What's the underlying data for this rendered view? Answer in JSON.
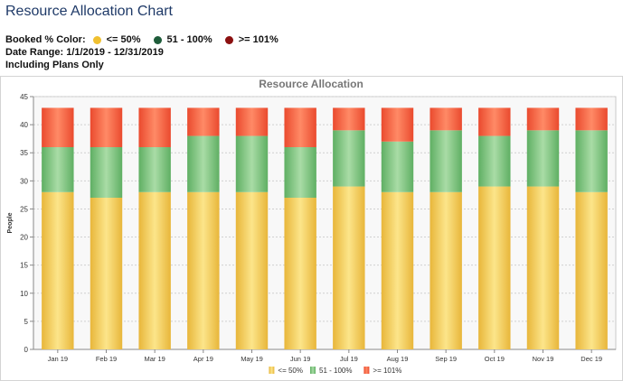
{
  "page": {
    "title": "Resource Allocation Chart",
    "booked_label": "Booked % Color:",
    "legend_items": [
      {
        "label": "<= 50%",
        "color": "#f0c030"
      },
      {
        "label": "51 - 100%",
        "color": "#1e5c3a"
      },
      {
        "label": ">= 101%",
        "color": "#8b1010"
      }
    ],
    "date_range": "Date Range: 1/1/2019 - 12/31/2019",
    "plans_note": "Including Plans Only"
  },
  "chart_data": {
    "type": "bar",
    "stacked": true,
    "title": "Resource Allocation",
    "ylabel": "People",
    "xlabel": "",
    "ylim": [
      0,
      45
    ],
    "yticks": [
      0,
      5,
      10,
      15,
      20,
      25,
      30,
      35,
      40,
      45
    ],
    "grid": true,
    "legend_position": "bottom",
    "categories": [
      "Jan 19",
      "Feb 19",
      "Mar 19",
      "Apr 19",
      "May 19",
      "Jun 19",
      "Jul 19",
      "Aug 19",
      "Sep 19",
      "Oct 19",
      "Nov 19",
      "Dec 19"
    ],
    "series": [
      {
        "name": "<= 50%",
        "color": "#f2c94c",
        "values": [
          28,
          27,
          28,
          28,
          28,
          27,
          29,
          28,
          28,
          29,
          29,
          28
        ]
      },
      {
        "name": "51 - 100%",
        "color": "#7cc47f",
        "values": [
          8,
          9,
          8,
          10,
          10,
          9,
          10,
          9,
          11,
          9,
          10,
          11
        ]
      },
      {
        "name": ">= 101%",
        "color": "#f05a3c",
        "values": [
          7,
          7,
          7,
          5,
          5,
          7,
          4,
          6,
          4,
          5,
          4,
          4
        ]
      }
    ]
  }
}
